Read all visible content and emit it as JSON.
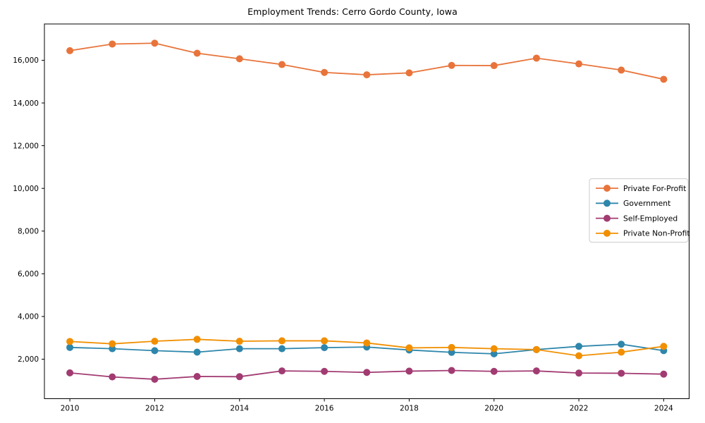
{
  "page_title": "Employment Trends: Cerro Gordo County, Iowa",
  "chart_data": {
    "type": "line",
    "title": "Employment Trends: Cerro Gordo County, Iowa",
    "xlabel": "",
    "ylabel": "",
    "x": [
      2010,
      2011,
      2012,
      2013,
      2014,
      2015,
      2016,
      2017,
      2018,
      2019,
      2020,
      2021,
      2022,
      2023,
      2024
    ],
    "series": [
      {
        "name": "Private For-Profit",
        "color": "#E8743B",
        "values": [
          16450,
          16760,
          16800,
          16330,
          16070,
          15800,
          15430,
          15320,
          15410,
          15760,
          15750,
          16100,
          15830,
          15540,
          15110
        ]
      },
      {
        "name": "Government",
        "color": "#2E86AB",
        "values": [
          2550,
          2490,
          2400,
          2330,
          2490,
          2490,
          2540,
          2570,
          2430,
          2320,
          2250,
          2450,
          2600,
          2700,
          2400
        ]
      },
      {
        "name": "Self-Employed",
        "color": "#A23B72",
        "values": [
          1360,
          1170,
          1060,
          1190,
          1180,
          1450,
          1430,
          1380,
          1440,
          1470,
          1430,
          1450,
          1350,
          1340,
          1300
        ]
      },
      {
        "name": "Private Non-Profit",
        "color": "#F18F01",
        "values": [
          2830,
          2720,
          2840,
          2930,
          2840,
          2860,
          2860,
          2760,
          2530,
          2550,
          2490,
          2450,
          2160,
          2330,
          2600
        ]
      }
    ],
    "xticks": [
      2010,
      2012,
      2014,
      2016,
      2018,
      2020,
      2022,
      2024
    ],
    "yticks": [
      2000,
      4000,
      6000,
      8000,
      10000,
      12000,
      14000,
      16000
    ],
    "ytick_labels": [
      "2,000",
      "4,000",
      "6,000",
      "8,000",
      "10,000",
      "12,000",
      "14,000",
      "16,000"
    ],
    "xlim": [
      2009.4,
      2024.6
    ],
    "ylim": [
      150,
      17700
    ],
    "grid": false,
    "legend_position": "right",
    "marker": "circle",
    "frame_color": "#000000",
    "legend_border_color": "#cccccc",
    "legend_background": "#ffffff"
  }
}
